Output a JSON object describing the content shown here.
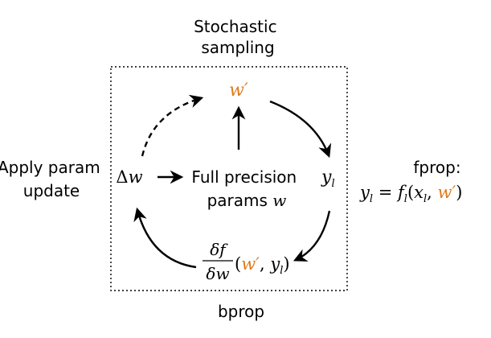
{
  "colors": {
    "accent": "#E07B1A",
    "ink": "#000000",
    "box_border": "#000000"
  },
  "labels": {
    "top_line1": "Stochastic",
    "top_line2": "sampling",
    "left_line1": "Apply param",
    "left_line2": "update",
    "right_title": "fprop:",
    "center_line1": "Full precision",
    "center_line2_text": "params ",
    "center_line2_var": "w",
    "bottom": "bprop"
  },
  "math": {
    "w_prime": "w′",
    "delta_w_delta": "Δ",
    "delta_w_var": "w",
    "y": "y",
    "sub_l": "l",
    "eq_y": "y",
    "eq_sub1": "l",
    "eq_equals": " = ",
    "eq_f": "f",
    "eq_sub2": "l",
    "eq_open": "(",
    "eq_x": "x",
    "eq_sub3": "l",
    "eq_comma": ", ",
    "eq_wprime": "w′",
    "eq_close": ")",
    "frac_num": "δf",
    "frac_den": "δw",
    "grad_open": "(",
    "grad_wprime": "w′",
    "grad_comma": ", ",
    "grad_y": "y",
    "grad_sub": "l",
    "grad_close": ")"
  }
}
